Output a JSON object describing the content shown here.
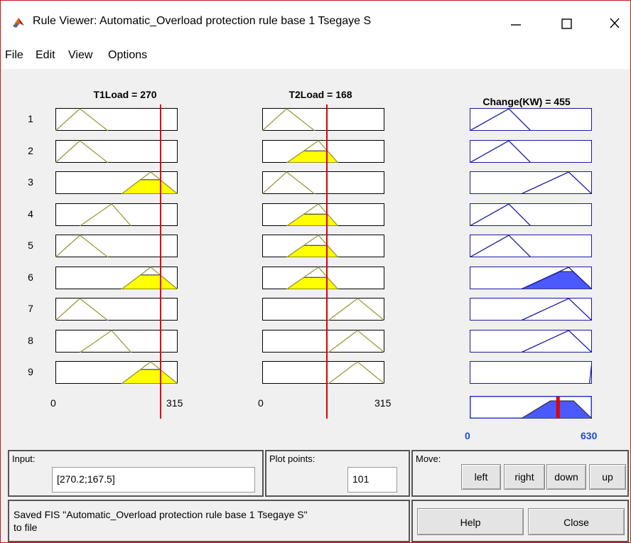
{
  "window": {
    "title": "Rule Viewer: Automatic_Overload protection rule base 1 Tsegaye S",
    "controls": {
      "minimize": "—",
      "maximize": "☐",
      "close": "✕"
    }
  },
  "menu": {
    "items": [
      "File",
      "Edit",
      "View",
      "Options"
    ]
  },
  "columns": {
    "t1load": {
      "header": "T1Load = 270",
      "min_label": "0",
      "max_label": "315",
      "value": 270,
      "range": [
        0,
        315
      ]
    },
    "t2load": {
      "header": "T2Load = 168",
      "min_label": "0",
      "max_label": "315",
      "value": 168,
      "range": [
        0,
        315
      ]
    },
    "change": {
      "header": "Change(KW) = 455",
      "min_label": "0",
      "max_label": "630",
      "value": 455,
      "range": [
        0,
        630
      ]
    }
  },
  "rules": {
    "numbers": [
      "1",
      "2",
      "3",
      "4",
      "5",
      "6",
      "7",
      "8",
      "9"
    ],
    "t1_mfs": [
      "low",
      "low",
      "high",
      "med",
      "low",
      "high",
      "low",
      "med",
      "high"
    ],
    "t2_mfs": [
      "low",
      "med",
      "low",
      "med",
      "med",
      "med",
      "high",
      "high",
      "high"
    ],
    "out_mfs": [
      "low",
      "low",
      "high",
      "low",
      "low",
      "high",
      "high",
      "high",
      "max"
    ]
  },
  "colors": {
    "input_fill": "#ffff00",
    "input_line": "#9b9b3c",
    "output_fill": "#4a5aff",
    "output_line": "#1a1aa0",
    "indicator": "#e00000",
    "frame": "#c81818"
  },
  "controls": {
    "input_label": "Input:",
    "input_value": "[270.2;167.5]",
    "plot_points_label": "Plot points:",
    "plot_points_value": "101",
    "move_label": "Move:",
    "move_buttons": [
      "left",
      "right",
      "down",
      "up"
    ],
    "help_label": "Help",
    "close_label": "Close",
    "status_line1": "Saved FIS \"Automatic_Overload protection rule base 1 Tsegaye S\"",
    "status_line2": "to file"
  }
}
